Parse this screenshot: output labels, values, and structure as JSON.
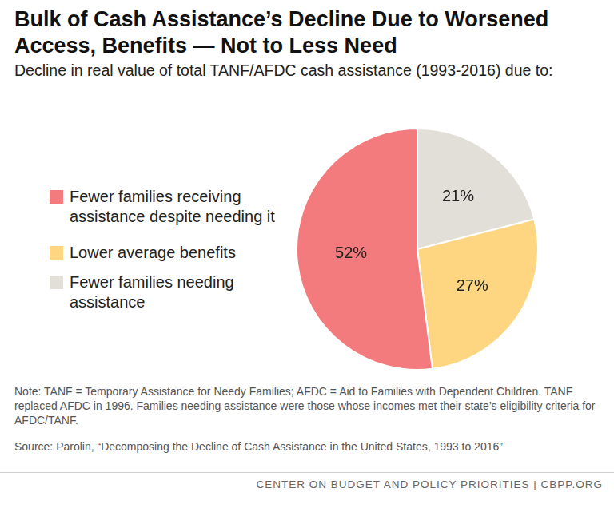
{
  "chart_data": {
    "type": "pie",
    "title": "Bulk of Cash Assistance’s Decline Due to Worsened Access, Benefits — Not to Less Need",
    "subtitle": "Decline in real value of total TANF/AFDC cash assistance (1993-2016) due to:",
    "categories": [
      "Fewer families receiving assistance despite needing it",
      "Lower average benefits",
      "Fewer families needing assistance"
    ],
    "values": [
      52,
      27,
      21
    ],
    "value_labels": [
      "52%",
      "27%",
      "21%"
    ],
    "colors": [
      "#f47b7d",
      "#fed681",
      "#e2dfd9"
    ],
    "data_labels": true,
    "legend": "left",
    "note": "Note: TANF = Temporary Assistance for Needy Families; AFDC = Aid to Families with Dependent Children. TANF replaced AFDC in 1996. Families needing assistance were those whose incomes met their state’s eligibility criteria for AFDC/TANF.",
    "source": "Source: Parolin, “Decomposing the Decline of Cash Assistance in the United States, 1993 to 2016”",
    "credit": "CENTER ON BUDGET AND POLICY PRIORITIES | CBPP.ORG"
  }
}
